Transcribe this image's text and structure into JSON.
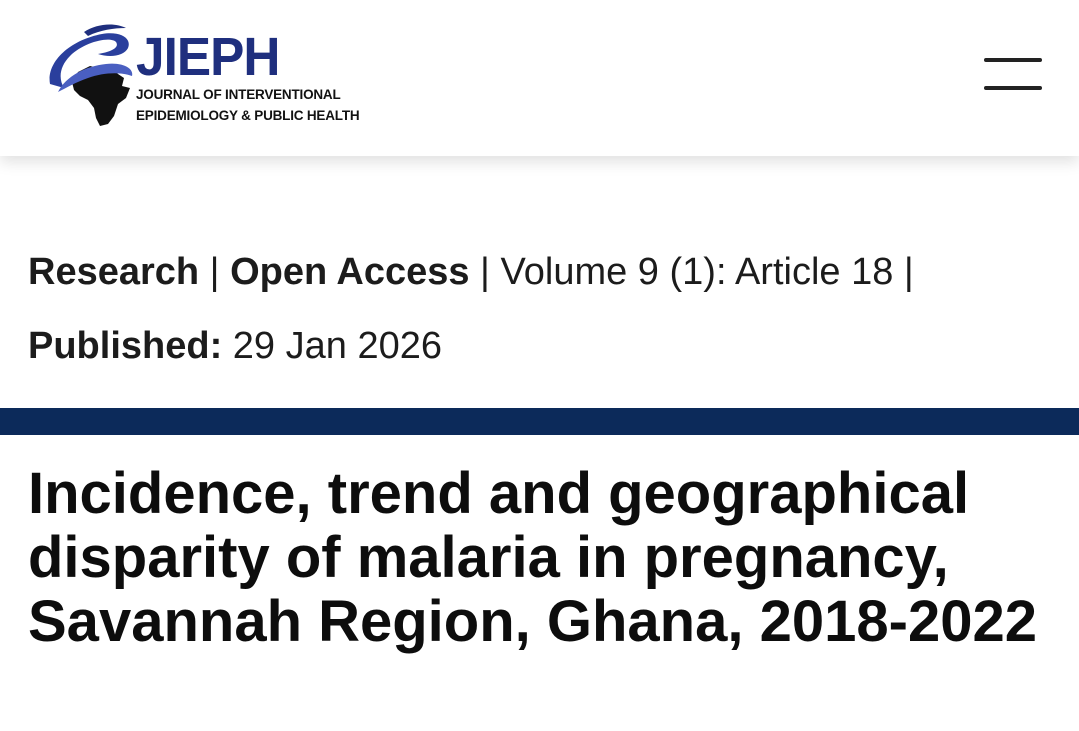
{
  "header": {
    "logo": {
      "acronym": "JIEPH",
      "subtitle_line1": "JOURNAL OF INTERVENTIONAL",
      "subtitle_line2": "EPIDEMIOLOGY & PUBLIC HEALTH",
      "colors": {
        "brand": "#1f2f7e",
        "text": "#121212"
      }
    },
    "menu_icon": "hamburger-menu-icon"
  },
  "article_meta": {
    "type": "Research",
    "sep1": " | ",
    "access": "Open Access",
    "sep2": " | ",
    "volume": "Volume 9 (1): Article  18 |",
    "published_label": "Published:",
    "published_date": " 29 Jan 2026"
  },
  "divider_color": "#0c2a5a",
  "article": {
    "title": "Incidence, trend and geographical disparity of malaria in pregnancy, Savannah Region, Ghana, 2018-2022"
  }
}
